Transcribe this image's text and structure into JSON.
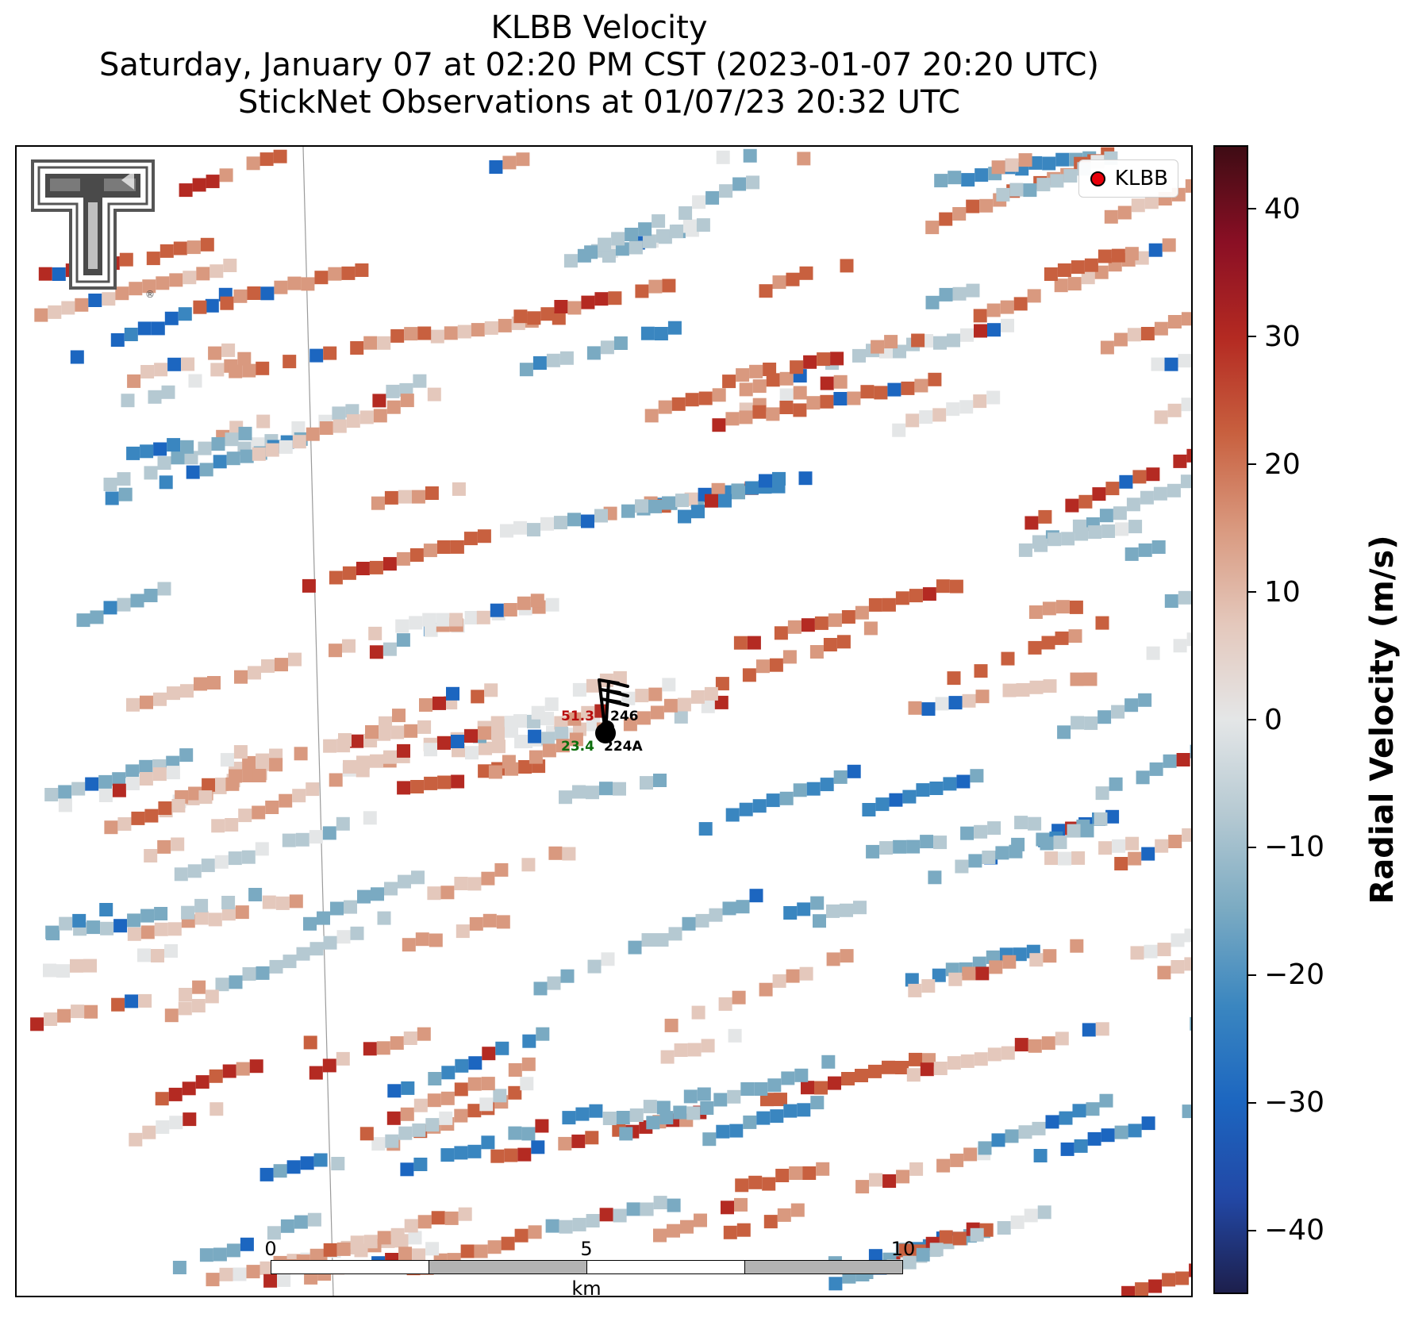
{
  "title": {
    "line1": "KLBB Velocity",
    "line2": "Saturday, January 07 at 02:20 PM CST (2023-01-07 20:20 UTC)",
    "line3": "StickNet Observations at 01/07/23 20:32 UTC"
  },
  "legend": {
    "label": "KLBB",
    "marker_color": "#e8000b"
  },
  "logo": {
    "name": "Texas Tech Double T",
    "registered_mark": "®"
  },
  "stations": [
    {
      "id": "246",
      "value": "51.3",
      "value_color": "#b80d0d"
    },
    {
      "id": "224A",
      "value": "23.4",
      "value_color": "#0d6e0d"
    }
  ],
  "scalebar": {
    "ticks": [
      "0",
      "5",
      "10"
    ],
    "unit": "km"
  },
  "colorbar": {
    "label": "Radial Velocity (m/s)",
    "range": [
      -45,
      45
    ],
    "ticks": [
      "40",
      "30",
      "20",
      "10",
      "0",
      "−10",
      "−20",
      "−30",
      "−40"
    ],
    "colormap": [
      "#1d1f4c",
      "#2248a6",
      "#1c66c0",
      "#3a86c0",
      "#7aaac2",
      "#b5c9d2",
      "#e4e6e7",
      "#e4c8bc",
      "#d9997f",
      "#c8603f",
      "#b42a22",
      "#8a0f24",
      "#3e0c14"
    ]
  }
}
